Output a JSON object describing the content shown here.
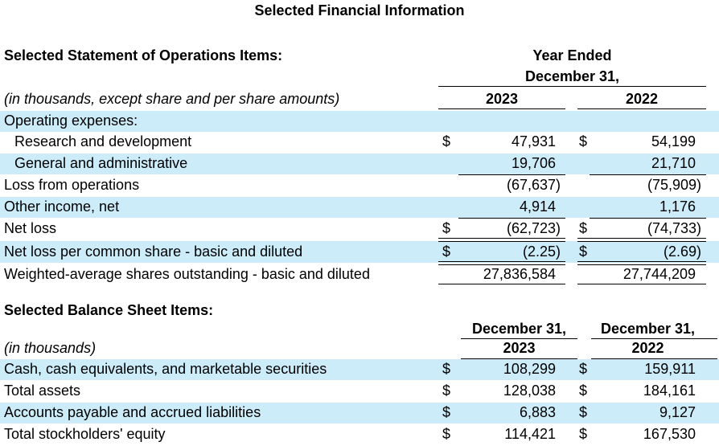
{
  "title": "Selected Financial Information",
  "operations": {
    "heading": "Selected Statement of Operations Items:",
    "period_header_line1": "Year Ended",
    "period_header_line2": "December 31,",
    "units_note": "(in thousands, except share and per share amounts)",
    "col_2023": "2023",
    "col_2022": "2022",
    "rows": [
      {
        "label": "Operating expenses:",
        "dollar_2023": "",
        "v2023": "",
        "dollar_2022": "",
        "v2022": ""
      },
      {
        "label": "Research and development",
        "dollar_2023": "$",
        "v2023": "47,931",
        "dollar_2022": "$",
        "v2022": "54,199"
      },
      {
        "label": "General and administrative",
        "dollar_2023": "",
        "v2023": "19,706",
        "dollar_2022": "",
        "v2022": "21,710"
      },
      {
        "label": "Loss from operations",
        "dollar_2023": "",
        "v2023": "(67,637)",
        "dollar_2022": "",
        "v2022": "(75,909)"
      },
      {
        "label": "Other income, net",
        "dollar_2023": "",
        "v2023": "4,914",
        "dollar_2022": "",
        "v2022": "1,176"
      },
      {
        "label": "Net loss",
        "dollar_2023": "$",
        "v2023": "(62,723)",
        "dollar_2022": "$",
        "v2022": "(74,733)"
      },
      {
        "label": "Net loss per common share - basic and diluted",
        "dollar_2023": "$",
        "v2023": "(2.25)",
        "dollar_2022": "$",
        "v2022": "(2.69)"
      },
      {
        "label": "Weighted-average shares outstanding - basic and diluted",
        "dollar_2023": "",
        "v2023": "27,836,584",
        "dollar_2022": "",
        "v2022": "27,744,209"
      }
    ]
  },
  "balance": {
    "heading": "Selected Balance Sheet Items:",
    "col_2023_line1": "December 31,",
    "col_2023_line2": "2023",
    "col_2022_line1": "December 31,",
    "col_2022_line2": "2022",
    "units_note": "(in thousands)",
    "rows": [
      {
        "label": "Cash, cash equivalents, and marketable securities",
        "dollar_2023": "$",
        "v2023": "108,299",
        "dollar_2022": "$",
        "v2022": "159,911"
      },
      {
        "label": "Total assets",
        "dollar_2023": "$",
        "v2023": "128,038",
        "dollar_2022": "$",
        "v2022": "184,161"
      },
      {
        "label": "Accounts payable and accrued liabilities",
        "dollar_2023": "$",
        "v2023": "6,883",
        "dollar_2022": "$",
        "v2022": "9,127"
      },
      {
        "label": "Total stockholders' equity",
        "dollar_2023": "$",
        "v2023": "114,421",
        "dollar_2022": "$",
        "v2022": "167,530"
      }
    ]
  },
  "colors": {
    "band": "#ccecf9"
  }
}
